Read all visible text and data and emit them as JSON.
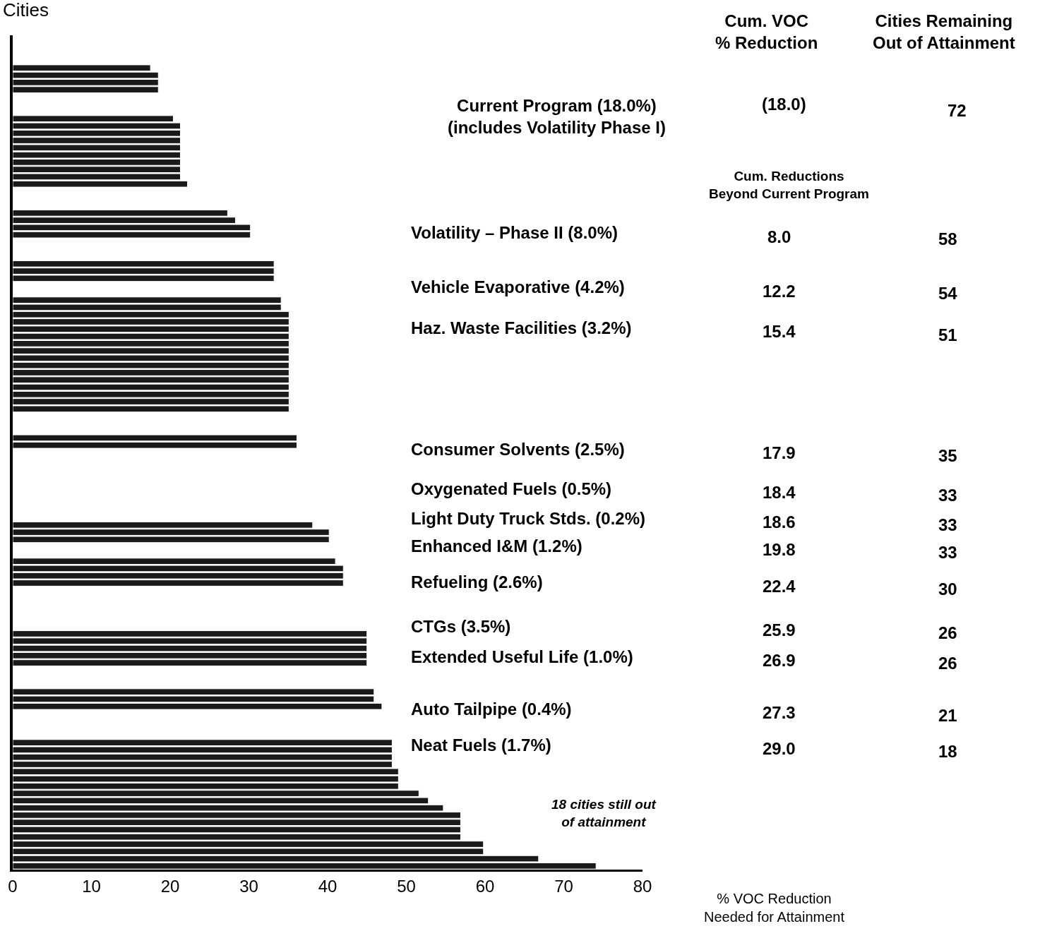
{
  "chart_data": {
    "type": "bar",
    "orientation": "horizontal",
    "ylabel": "Cities",
    "xlabel": "% VOC Reduction\nNeeded for Attainment",
    "color": "#1a1a1a",
    "categories": [
      null,
      null,
      null,
      null,
      null,
      null,
      null,
      null,
      null,
      null,
      null,
      null,
      null,
      null,
      null,
      null,
      null,
      null,
      null,
      null,
      null,
      null,
      null,
      null,
      null,
      null,
      null,
      null,
      null,
      null,
      null,
      null,
      null,
      null,
      null,
      null,
      null,
      null,
      null,
      null,
      null,
      null,
      null,
      null,
      null,
      null,
      null,
      null,
      null,
      null,
      null,
      null,
      null,
      null,
      null,
      null,
      null,
      null,
      null,
      null,
      null,
      null,
      null,
      null,
      null,
      null,
      null,
      null,
      null,
      null,
      null,
      null,
      null,
      null,
      null,
      null,
      null,
      null,
      null,
      null,
      null,
      null,
      null,
      null,
      null,
      null,
      null,
      null,
      null,
      null,
      null,
      null,
      null,
      null,
      null,
      null,
      null,
      null,
      null,
      null,
      null,
      null,
      null,
      null,
      null,
      null,
      null,
      null,
      null,
      null,
      null,
      null,
      null,
      null,
      null
    ],
    "values": [
      null,
      null,
      null,
      null,
      17.5,
      18.5,
      18.5,
      18.5,
      null,
      null,
      null,
      20.4,
      21.3,
      21.3,
      21.3,
      21.3,
      21.3,
      21.3,
      21.3,
      21.3,
      22.2,
      null,
      null,
      null,
      27.3,
      28.3,
      30.2,
      30.2,
      null,
      null,
      null,
      33.2,
      33.2,
      33.2,
      null,
      null,
      34.1,
      34.1,
      35.1,
      35.1,
      35.1,
      35.1,
      35.1,
      35.1,
      35.1,
      35.1,
      35.1,
      35.1,
      35.1,
      35.1,
      35.1,
      35.1,
      null,
      null,
      null,
      36.1,
      36.1,
      null,
      null,
      null,
      null,
      null,
      null,
      null,
      null,
      null,
      null,
      38.1,
      40.2,
      40.2,
      null,
      null,
      41.0,
      42.0,
      42.0,
      42.0,
      null,
      null,
      null,
      null,
      null,
      null,
      45.0,
      45.0,
      45.0,
      45.0,
      45.0,
      null,
      null,
      null,
      45.9,
      45.9,
      46.9,
      null,
      null,
      null,
      null,
      48.2,
      48.2,
      48.2,
      48.2,
      49.0,
      49.0,
      49.0,
      51.6,
      52.8,
      54.7,
      56.9,
      56.9,
      56.9,
      56.9,
      59.8,
      59.8,
      66.8,
      74.1
    ],
    "xlim": [
      0,
      80
    ],
    "xticks": [
      0,
      10,
      20,
      30,
      40,
      50,
      60,
      70,
      80
    ],
    "tick_labels": "x",
    "grid": false,
    "annotations": [
      "Cum. VOC\n% Reduction",
      "Cities Remaining\nOut of Attainment",
      "Current Program (18.0%)\n(includes Volatility Phase I)",
      "(18.0)",
      "72",
      "Cum. Reductions\nBeyond Current Program",
      "Volatility – Phase II (8.0%)",
      "8.0",
      "58",
      "Vehicle Evaporative (4.2%)",
      "12.2",
      "54",
      "Haz. Waste Facilities (3.2%)",
      "15.4",
      "51",
      "Consumer Solvents (2.5%)",
      "17.9",
      "35",
      "Oxygenated Fuels (0.5%)",
      "18.4",
      "33",
      "Light Duty Truck Stds. (0.2%)",
      "18.6",
      "33",
      "Enhanced I&M (1.2%)",
      "19.8",
      "33",
      "Refueling (2.6%)",
      "22.4",
      "30",
      "CTGs (3.5%)",
      "25.9",
      "26",
      "Extended Useful Life (1.0%)",
      "26.9",
      "26",
      "Auto Tailpipe (0.4%)",
      "27.3",
      "21",
      "Neat Fuels (1.7%)",
      "29.0",
      "18",
      "18 cities still out\nof attainment"
    ]
  }
}
